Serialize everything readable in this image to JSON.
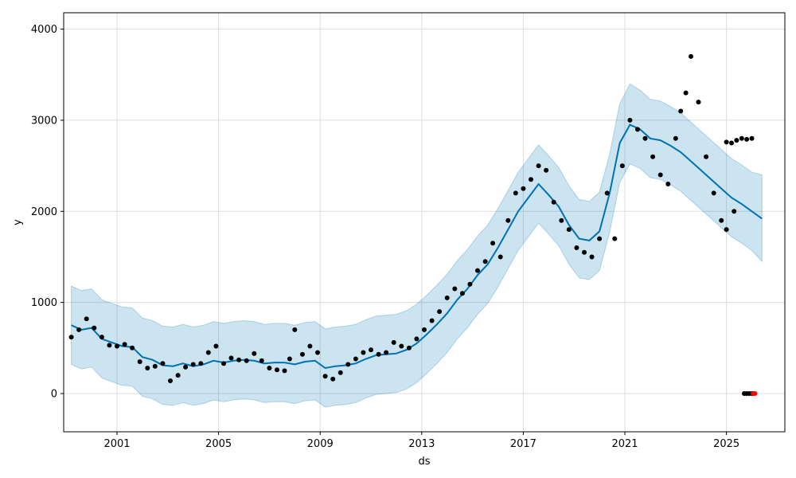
{
  "chart_data": {
    "type": "line",
    "xlabel": "ds",
    "ylabel": "y",
    "xlim": [
      1998.9,
      2027.3
    ],
    "ylim": [
      -420,
      4180
    ],
    "grid": true,
    "x_ticks": [
      2001,
      2005,
      2009,
      2013,
      2017,
      2021,
      2025
    ],
    "x_tick_labels": [
      "2001",
      "2005",
      "2009",
      "2013",
      "2017",
      "2021",
      "2025"
    ],
    "y_ticks": [
      0,
      1000,
      2000,
      3000,
      4000
    ],
    "y_tick_labels": [
      "0",
      "1000",
      "2000",
      "3000",
      "4000"
    ],
    "series": [
      {
        "role": "forecast",
        "color": "#0072b2",
        "x": [
          1999.2,
          1999.6,
          2000.0,
          2000.4,
          2000.8,
          2001.2,
          2001.6,
          2002.0,
          2002.4,
          2002.8,
          2003.2,
          2003.6,
          2004.0,
          2004.4,
          2004.8,
          2005.2,
          2005.6,
          2006.0,
          2006.4,
          2006.8,
          2007.2,
          2007.6,
          2008.0,
          2008.4,
          2008.8,
          2009.2,
          2009.6,
          2010.0,
          2010.4,
          2010.8,
          2011.2,
          2011.6,
          2012.0,
          2012.4,
          2012.8,
          2013.2,
          2013.6,
          2014.0,
          2014.4,
          2014.8,
          2015.2,
          2015.6,
          2016.0,
          2016.4,
          2016.8,
          2017.2,
          2017.6,
          2018.0,
          2018.4,
          2018.8,
          2019.2,
          2019.6,
          2020.0,
          2020.4,
          2020.8,
          2021.2,
          2021.6,
          2022.0,
          2022.4,
          2022.8,
          2023.2,
          2023.6,
          2024.0,
          2024.4,
          2024.8,
          2025.2,
          2025.6,
          2026.0,
          2026.4
        ],
        "yhat": [
          750,
          700,
          720,
          600,
          560,
          520,
          510,
          400,
          370,
          310,
          300,
          330,
          300,
          320,
          360,
          340,
          360,
          370,
          360,
          330,
          340,
          340,
          320,
          350,
          360,
          280,
          300,
          310,
          330,
          380,
          420,
          430,
          440,
          480,
          550,
          650,
          760,
          880,
          1030,
          1150,
          1300,
          1420,
          1600,
          1800,
          2000,
          2150,
          2300,
          2180,
          2050,
          1850,
          1700,
          1680,
          1780,
          2200,
          2750,
          2950,
          2900,
          2800,
          2780,
          2720,
          2650,
          2550,
          2450,
          2350,
          2250,
          2150,
          2080,
          2000,
          1920
        ],
        "upper": [
          1180,
          1130,
          1150,
          1030,
          990,
          950,
          940,
          830,
          800,
          740,
          730,
          760,
          730,
          750,
          790,
          770,
          790,
          800,
          790,
          760,
          770,
          770,
          750,
          780,
          790,
          710,
          730,
          740,
          760,
          810,
          850,
          860,
          870,
          910,
          980,
          1080,
          1190,
          1310,
          1460,
          1580,
          1730,
          1850,
          2030,
          2230,
          2430,
          2580,
          2730,
          2610,
          2480,
          2280,
          2130,
          2110,
          2210,
          2630,
          3180,
          3400,
          3330,
          3230,
          3210,
          3150,
          3080,
          2980,
          2880,
          2780,
          2680,
          2580,
          2510,
          2430,
          2400
        ],
        "lower": [
          320,
          270,
          290,
          170,
          130,
          90,
          80,
          -30,
          -60,
          -120,
          -130,
          -100,
          -130,
          -110,
          -70,
          -90,
          -70,
          -60,
          -70,
          -100,
          -90,
          -90,
          -110,
          -80,
          -70,
          -150,
          -130,
          -120,
          -100,
          -50,
          -10,
          0,
          10,
          50,
          120,
          220,
          330,
          450,
          600,
          720,
          870,
          990,
          1170,
          1370,
          1570,
          1720,
          1870,
          1750,
          1620,
          1420,
          1270,
          1250,
          1350,
          1770,
          2320,
          2520,
          2470,
          2370,
          2350,
          2290,
          2220,
          2120,
          2020,
          1920,
          1820,
          1720,
          1650,
          1570,
          1450
        ]
      },
      {
        "role": "observed",
        "color": "#000000",
        "x": [
          1999.2,
          1999.5,
          1999.8,
          2000.1,
          2000.4,
          2000.7,
          2001.0,
          2001.3,
          2001.6,
          2001.9,
          2002.2,
          2002.5,
          2002.8,
          2003.1,
          2003.4,
          2003.7,
          2004.0,
          2004.3,
          2004.6,
          2004.9,
          2005.2,
          2005.5,
          2005.8,
          2006.1,
          2006.4,
          2006.7,
          2007.0,
          2007.3,
          2007.6,
          2007.8,
          2008.0,
          2008.3,
          2008.6,
          2008.9,
          2009.2,
          2009.5,
          2009.8,
          2010.1,
          2010.4,
          2010.7,
          2011.0,
          2011.3,
          2011.6,
          2011.9,
          2012.2,
          2012.5,
          2012.8,
          2013.1,
          2013.4,
          2013.7,
          2014.0,
          2014.3,
          2014.6,
          2014.9,
          2015.2,
          2015.5,
          2015.8,
          2016.1,
          2016.4,
          2016.7,
          2017.0,
          2017.3,
          2017.6,
          2017.9,
          2018.2,
          2018.5,
          2018.8,
          2019.1,
          2019.4,
          2019.7,
          2020.0,
          2020.3,
          2020.6,
          2020.9,
          2021.2,
          2021.5,
          2021.8,
          2022.1,
          2022.4,
          2022.7,
          2023.0,
          2023.2,
          2023.4,
          2023.6,
          2023.9,
          2024.2,
          2024.5,
          2024.8,
          2025.0,
          2025.3
        ],
        "y": [
          620,
          700,
          820,
          720,
          620,
          530,
          520,
          540,
          500,
          350,
          280,
          300,
          330,
          140,
          200,
          290,
          320,
          330,
          450,
          520,
          330,
          390,
          370,
          360,
          440,
          360,
          280,
          260,
          250,
          380,
          700,
          430,
          520,
          450,
          190,
          160,
          230,
          320,
          380,
          450,
          480,
          430,
          450,
          560,
          520,
          500,
          600,
          700,
          800,
          900,
          1050,
          1150,
          1100,
          1200,
          1350,
          1450,
          1650,
          1500,
          1900,
          2200,
          2250,
          2350,
          2500,
          2450,
          2100,
          1900,
          1800,
          1600,
          1550,
          1500,
          1700,
          2200,
          1700,
          2500,
          3000,
          2900,
          2800,
          2600,
          2400,
          2300,
          2800,
          3100,
          3300,
          3700,
          3200,
          2600,
          2200,
          1900,
          1800,
          2000
        ]
      },
      {
        "role": "observed-late",
        "color": "#000000",
        "x": [
          2025.0,
          2025.2,
          2025.4,
          2025.6,
          2025.8,
          2026.0
        ],
        "y": [
          2760,
          2750,
          2780,
          2800,
          2790,
          2800
        ]
      },
      {
        "role": "observed-zero",
        "color": "#000000",
        "x": [
          2025.7,
          2025.8,
          2025.9,
          2026.0
        ],
        "y": [
          0,
          0,
          0,
          0
        ]
      },
      {
        "role": "highlight",
        "color": "#ff0000",
        "x": [
          2026.05,
          2026.12
        ],
        "y": [
          0,
          0
        ]
      }
    ]
  }
}
